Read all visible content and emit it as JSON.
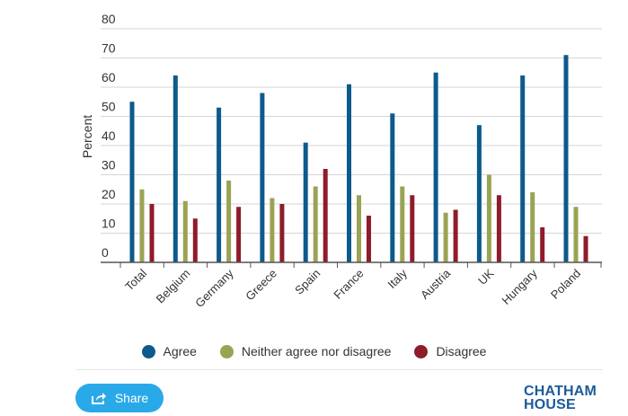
{
  "chart_data": {
    "type": "bar",
    "title": "",
    "xlabel": "",
    "ylabel": "Percent",
    "ylim": [
      0,
      80
    ],
    "yticks": [
      0,
      10,
      20,
      30,
      40,
      50,
      60,
      70,
      80
    ],
    "grid": true,
    "categories": [
      "Total",
      "Belgium",
      "Germany",
      "Greece",
      "Spain",
      "France",
      "Italy",
      "Austria",
      "UK",
      "Hungary",
      "Poland"
    ],
    "series": [
      {
        "name": "Agree",
        "color": "#0d5a8c",
        "values": [
          55,
          64,
          53,
          58,
          41,
          61,
          51,
          65,
          47,
          64,
          71
        ]
      },
      {
        "name": "Neither agree nor disagree",
        "color": "#9aa354",
        "values": [
          25,
          21,
          28,
          22,
          26,
          23,
          26,
          17,
          30,
          24,
          19
        ]
      },
      {
        "name": "Disagree",
        "color": "#8e1c2b",
        "values": [
          20,
          15,
          19,
          20,
          32,
          16,
          23,
          18,
          23,
          12,
          9
        ]
      }
    ],
    "legend_position": "bottom-center"
  },
  "share": {
    "label": "Share",
    "icon": "share-icon"
  },
  "brand": {
    "line1": "CHATHAM",
    "line2": "HOUSE"
  }
}
